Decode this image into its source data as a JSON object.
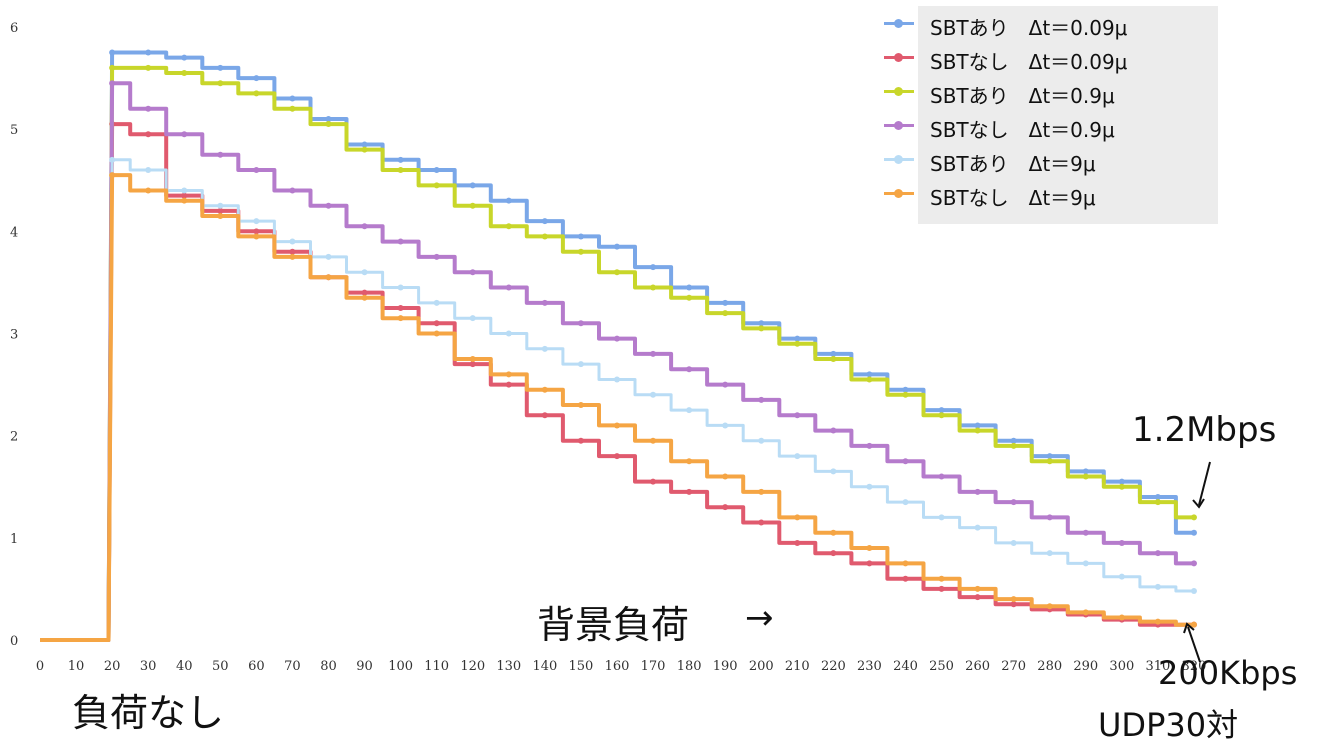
{
  "chart_data": {
    "type": "line",
    "title": "",
    "xlabel": "",
    "ylabel": "",
    "xlim": [
      0,
      325
    ],
    "ylim": [
      0,
      6
    ],
    "x_ticks": [
      0,
      10,
      20,
      30,
      40,
      50,
      60,
      70,
      80,
      90,
      100,
      110,
      120,
      130,
      140,
      150,
      160,
      170,
      180,
      190,
      200,
      210,
      220,
      230,
      240,
      250,
      260,
      270,
      280,
      290,
      300,
      310,
      320
    ],
    "y_ticks": [
      0,
      1,
      2,
      3,
      4,
      5,
      6
    ],
    "legend_position": "top-right",
    "grid": false,
    "series": [
      {
        "name": "SBTあり　Δt＝0.09μ",
        "color": "#7aa7e8",
        "x": [
          0,
          19,
          20,
          30,
          40,
          50,
          60,
          70,
          80,
          90,
          100,
          110,
          120,
          130,
          140,
          150,
          160,
          170,
          180,
          190,
          200,
          210,
          220,
          230,
          240,
          250,
          260,
          270,
          280,
          290,
          300,
          310,
          320
        ],
        "y": [
          0,
          0,
          5.75,
          5.75,
          5.7,
          5.6,
          5.5,
          5.3,
          5.1,
          4.85,
          4.7,
          4.6,
          4.45,
          4.3,
          4.1,
          3.95,
          3.85,
          3.65,
          3.45,
          3.3,
          3.1,
          2.95,
          2.8,
          2.6,
          2.45,
          2.25,
          2.1,
          1.95,
          1.8,
          1.65,
          1.55,
          1.4,
          1.05
        ]
      },
      {
        "name": "SBTなし　Δt＝0.09μ",
        "color": "#e05a6e",
        "x": [
          0,
          19,
          20,
          30,
          40,
          50,
          60,
          70,
          80,
          90,
          100,
          110,
          120,
          130,
          140,
          150,
          160,
          170,
          180,
          190,
          200,
          210,
          220,
          230,
          240,
          250,
          260,
          270,
          280,
          290,
          300,
          310,
          320
        ],
        "y": [
          0,
          0,
          5.05,
          4.95,
          4.35,
          4.2,
          4.0,
          3.8,
          3.55,
          3.4,
          3.25,
          3.1,
          2.7,
          2.5,
          2.2,
          1.95,
          1.8,
          1.55,
          1.45,
          1.3,
          1.15,
          0.95,
          0.85,
          0.75,
          0.6,
          0.5,
          0.42,
          0.35,
          0.3,
          0.25,
          0.2,
          0.15,
          0.15
        ]
      },
      {
        "name": "SBTあり　Δt＝0.9μ",
        "color": "#c8d62a",
        "x": [
          0,
          19,
          20,
          30,
          40,
          50,
          60,
          70,
          80,
          90,
          100,
          110,
          120,
          130,
          140,
          150,
          160,
          170,
          180,
          190,
          200,
          210,
          220,
          230,
          240,
          250,
          260,
          270,
          280,
          290,
          300,
          310,
          320
        ],
        "y": [
          0,
          0,
          5.6,
          5.6,
          5.55,
          5.45,
          5.35,
          5.2,
          5.05,
          4.8,
          4.6,
          4.45,
          4.25,
          4.05,
          3.95,
          3.8,
          3.6,
          3.45,
          3.35,
          3.2,
          3.05,
          2.9,
          2.75,
          2.55,
          2.4,
          2.2,
          2.05,
          1.9,
          1.75,
          1.6,
          1.5,
          1.35,
          1.2
        ]
      },
      {
        "name": "SBTなし　Δt＝0.9μ",
        "color": "#b57bcc",
        "x": [
          0,
          19,
          20,
          30,
          40,
          50,
          60,
          70,
          80,
          90,
          100,
          110,
          120,
          130,
          140,
          150,
          160,
          170,
          180,
          190,
          200,
          210,
          220,
          230,
          240,
          250,
          260,
          270,
          280,
          290,
          300,
          310,
          320
        ],
        "y": [
          0,
          0,
          5.45,
          5.2,
          4.95,
          4.75,
          4.6,
          4.4,
          4.25,
          4.05,
          3.9,
          3.75,
          3.6,
          3.45,
          3.3,
          3.1,
          2.95,
          2.8,
          2.65,
          2.5,
          2.35,
          2.2,
          2.05,
          1.9,
          1.75,
          1.6,
          1.45,
          1.35,
          1.2,
          1.05,
          0.95,
          0.85,
          0.75
        ]
      },
      {
        "name": "SBTあり　Δt＝9μ",
        "color": "#b9dcf5",
        "x": [
          0,
          19,
          20,
          30,
          40,
          50,
          60,
          70,
          80,
          90,
          100,
          110,
          120,
          130,
          140,
          150,
          160,
          170,
          180,
          190,
          200,
          210,
          220,
          230,
          240,
          250,
          260,
          270,
          280,
          290,
          300,
          310,
          320
        ],
        "y": [
          0,
          0,
          4.7,
          4.6,
          4.4,
          4.25,
          4.1,
          3.9,
          3.75,
          3.6,
          3.45,
          3.3,
          3.15,
          3.0,
          2.85,
          2.7,
          2.55,
          2.4,
          2.25,
          2.1,
          1.95,
          1.8,
          1.65,
          1.5,
          1.35,
          1.2,
          1.1,
          0.95,
          0.85,
          0.75,
          0.62,
          0.52,
          0.48
        ]
      },
      {
        "name": "SBTなし　Δt＝9μ",
        "color": "#f5a544",
        "x": [
          0,
          19,
          20,
          30,
          40,
          50,
          60,
          70,
          80,
          90,
          100,
          110,
          120,
          130,
          140,
          150,
          160,
          170,
          180,
          190,
          200,
          210,
          220,
          230,
          240,
          250,
          260,
          270,
          280,
          290,
          300,
          310,
          320
        ],
        "y": [
          0,
          0,
          4.55,
          4.4,
          4.3,
          4.15,
          3.95,
          3.75,
          3.55,
          3.35,
          3.15,
          3.0,
          2.75,
          2.6,
          2.45,
          2.3,
          2.1,
          1.95,
          1.75,
          1.6,
          1.45,
          1.2,
          1.05,
          0.9,
          0.75,
          0.6,
          0.5,
          0.4,
          0.33,
          0.27,
          0.22,
          0.18,
          0.15
        ]
      }
    ],
    "annotations": {
      "no_load": "負荷なし",
      "background_load": "背景負荷",
      "arrow_right": "→",
      "top_value": "1.2Mbps",
      "bottom_value": "200Kbps",
      "udp_pairs": "UDP30対"
    }
  }
}
